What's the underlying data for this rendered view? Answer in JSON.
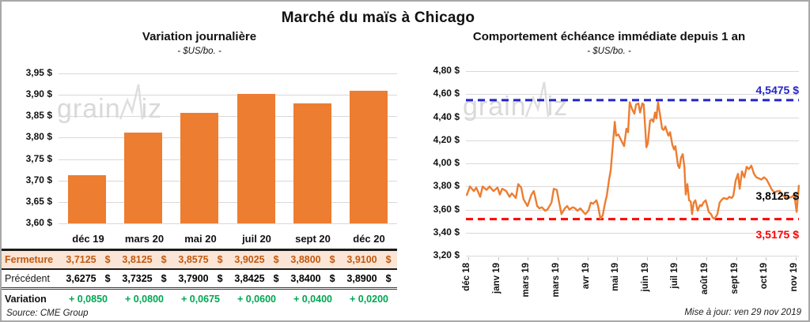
{
  "page": {
    "title": "Marché du maïs à Chicago",
    "source": "Source: CME Group",
    "updated": "Mise à jour: ven 29 nov 2019",
    "watermark": {
      "part1": "grain",
      "part2": "iz"
    }
  },
  "colors": {
    "series_orange": "#ED7D31",
    "gridline": "#D9D9D9",
    "max_blue": "#2424C8",
    "min_red": "#FF0000",
    "variation_green": "#00A651",
    "fermeture_text": "#C05A11",
    "fermeture_bg": "#FBE5D6"
  },
  "chart_data": [
    {
      "type": "bar",
      "title": "Variation journalière",
      "subtitle": "- $US/bo. -",
      "categories": [
        "déc 19",
        "mars 20",
        "mai 20",
        "juil 20",
        "sept 20",
        "déc 20"
      ],
      "values": [
        3.7125,
        3.8125,
        3.8575,
        3.9025,
        3.88,
        3.91
      ],
      "ylim": [
        3.6,
        3.95
      ],
      "ytick_labels": [
        "3,95 $",
        "3,90 $",
        "3,85 $",
        "3,80 $",
        "3,75 $",
        "3,70 $",
        "3,65 $",
        "3,60 $"
      ],
      "bar_color": "#ED7D31",
      "table": {
        "rows": [
          {
            "label": "Fermeture",
            "unit": "$",
            "values": [
              "3,7125",
              "3,8125",
              "3,8575",
              "3,9025",
              "3,8800",
              "3,9100"
            ]
          },
          {
            "label": "Précédent",
            "unit": "$",
            "values": [
              "3,6275",
              "3,7325",
              "3,7900",
              "3,8425",
              "3,8400",
              "3,8900"
            ]
          },
          {
            "label": "Variation",
            "unit": "",
            "values": [
              "+ 0,0850",
              "+ 0,0800",
              "+ 0,0675",
              "+ 0,0600",
              "+ 0,0400",
              "+ 0,0200"
            ]
          }
        ]
      }
    },
    {
      "type": "line",
      "title": "Comportement échéance immédiate depuis 1 an",
      "subtitle": "- $US/bo. -",
      "x_labels": [
        "déc 18",
        "janv 19",
        "mars 19",
        "mars 19",
        "avr 19",
        "mai 19",
        "juin 19",
        "juil 19",
        "août 19",
        "sept 19",
        "oct 19",
        "nov 19"
      ],
      "ylim": [
        3.2,
        4.8
      ],
      "ytick_labels": [
        "4,80 $",
        "4,60 $",
        "4,40 $",
        "4,20 $",
        "4,00 $",
        "3,80 $",
        "3,60 $",
        "3,40 $",
        "3,20 $"
      ],
      "line_color": "#ED7D31",
      "max_line": {
        "value": 4.5475,
        "label": "4,5475 $",
        "color": "#2424C8"
      },
      "min_line": {
        "value": 3.5175,
        "label": "3,5175 $",
        "color": "#FF0000"
      },
      "last_value": {
        "value": 3.8125,
        "label": "3,8125 $",
        "color": "#000000"
      },
      "points": [
        [
          0.2,
          3.72
        ],
        [
          1.2,
          3.8
        ],
        [
          2.4,
          3.76
        ],
        [
          3.1,
          3.79
        ],
        [
          4.3,
          3.71
        ],
        [
          5.0,
          3.8
        ],
        [
          6.2,
          3.77
        ],
        [
          7.1,
          3.8
        ],
        [
          8.3,
          3.76
        ],
        [
          9.5,
          3.79
        ],
        [
          10.2,
          3.73
        ],
        [
          10.9,
          3.78
        ],
        [
          12.1,
          3.76
        ],
        [
          13.1,
          3.71
        ],
        [
          13.8,
          3.74
        ],
        [
          15.0,
          3.7
        ],
        [
          15.7,
          3.82
        ],
        [
          16.6,
          3.79
        ],
        [
          17.3,
          3.69
        ],
        [
          18.5,
          3.63
        ],
        [
          19.7,
          3.73
        ],
        [
          20.4,
          3.76
        ],
        [
          21.4,
          3.63
        ],
        [
          22.1,
          3.61
        ],
        [
          22.8,
          3.62
        ],
        [
          23.8,
          3.59
        ],
        [
          24.5,
          3.6
        ],
        [
          25.7,
          3.66
        ],
        [
          26.4,
          3.78
        ],
        [
          27.3,
          3.77
        ],
        [
          28.0,
          3.66
        ],
        [
          28.7,
          3.56
        ],
        [
          29.7,
          3.61
        ],
        [
          30.4,
          3.63
        ],
        [
          31.1,
          3.6
        ],
        [
          32.1,
          3.62
        ],
        [
          32.8,
          3.61
        ],
        [
          33.5,
          3.59
        ],
        [
          34.4,
          3.61
        ],
        [
          35.2,
          3.58
        ],
        [
          35.9,
          3.56
        ],
        [
          36.8,
          3.59
        ],
        [
          37.5,
          3.66
        ],
        [
          38.2,
          3.65
        ],
        [
          39.2,
          3.68
        ],
        [
          39.7,
          3.63
        ],
        [
          40.4,
          3.52
        ],
        [
          41.1,
          3.55
        ],
        [
          41.8,
          3.66
        ],
        [
          42.3,
          3.72
        ],
        [
          43.0,
          3.86
        ],
        [
          43.5,
          3.94
        ],
        [
          44.2,
          4.19
        ],
        [
          44.7,
          4.36
        ],
        [
          45.1,
          4.24
        ],
        [
          45.8,
          4.25
        ],
        [
          46.6,
          4.2
        ],
        [
          47.5,
          4.15
        ],
        [
          48.2,
          4.3
        ],
        [
          48.7,
          4.27
        ],
        [
          49.2,
          4.53
        ],
        [
          49.9,
          4.47
        ],
        [
          50.6,
          4.43
        ],
        [
          51.1,
          4.51
        ],
        [
          51.8,
          4.52
        ],
        [
          52.3,
          4.44
        ],
        [
          53.0,
          4.52
        ],
        [
          53.4,
          4.51
        ],
        [
          54.2,
          4.14
        ],
        [
          54.6,
          4.17
        ],
        [
          55.3,
          4.37
        ],
        [
          55.8,
          4.38
        ],
        [
          56.3,
          4.36
        ],
        [
          56.8,
          4.44
        ],
        [
          57.2,
          4.39
        ],
        [
          57.7,
          4.53
        ],
        [
          58.4,
          4.4
        ],
        [
          58.9,
          4.3
        ],
        [
          59.4,
          4.29
        ],
        [
          59.9,
          4.32
        ],
        [
          60.3,
          4.28
        ],
        [
          60.8,
          4.24
        ],
        [
          61.3,
          4.27
        ],
        [
          62.0,
          4.16
        ],
        [
          62.5,
          4.12
        ],
        [
          62.9,
          4.15
        ],
        [
          63.7,
          3.98
        ],
        [
          64.1,
          3.96
        ],
        [
          64.6,
          4.05
        ],
        [
          65.1,
          4.08
        ],
        [
          65.6,
          3.97
        ],
        [
          66.0,
          3.73
        ],
        [
          66.5,
          3.82
        ],
        [
          67.0,
          3.68
        ],
        [
          67.5,
          3.67
        ],
        [
          67.9,
          3.56
        ],
        [
          68.4,
          3.66
        ],
        [
          68.9,
          3.68
        ],
        [
          69.6,
          3.59
        ],
        [
          70.3,
          3.64
        ],
        [
          70.8,
          3.63
        ],
        [
          71.3,
          3.66
        ],
        [
          72.0,
          3.68
        ],
        [
          72.4,
          3.64
        ],
        [
          72.9,
          3.58
        ],
        [
          73.6,
          3.56
        ],
        [
          74.1,
          3.53
        ],
        [
          74.6,
          3.52
        ],
        [
          75.1,
          3.54
        ],
        [
          75.5,
          3.56
        ],
        [
          76.2,
          3.66
        ],
        [
          76.7,
          3.68
        ],
        [
          77.4,
          3.7
        ],
        [
          78.4,
          3.69
        ],
        [
          79.1,
          3.71
        ],
        [
          79.8,
          3.7
        ],
        [
          80.3,
          3.72
        ],
        [
          81.0,
          3.85
        ],
        [
          81.7,
          3.91
        ],
        [
          82.2,
          3.78
        ],
        [
          82.9,
          3.93
        ],
        [
          83.6,
          3.88
        ],
        [
          84.3,
          3.97
        ],
        [
          85.0,
          3.95
        ],
        [
          85.7,
          3.98
        ],
        [
          86.5,
          3.91
        ],
        [
          87.2,
          3.88
        ],
        [
          87.9,
          3.87
        ],
        [
          88.8,
          3.86
        ],
        [
          89.5,
          3.88
        ],
        [
          90.3,
          3.86
        ],
        [
          91.2,
          3.81
        ],
        [
          91.9,
          3.77
        ],
        [
          92.6,
          3.75
        ],
        [
          93.6,
          3.76
        ],
        [
          94.3,
          3.76
        ],
        [
          95.0,
          3.72
        ],
        [
          96.0,
          3.71
        ],
        [
          96.9,
          3.7
        ],
        [
          97.9,
          3.71
        ],
        [
          98.6,
          3.73
        ],
        [
          99.3,
          3.58
        ],
        [
          100,
          3.8125
        ]
      ]
    }
  ]
}
